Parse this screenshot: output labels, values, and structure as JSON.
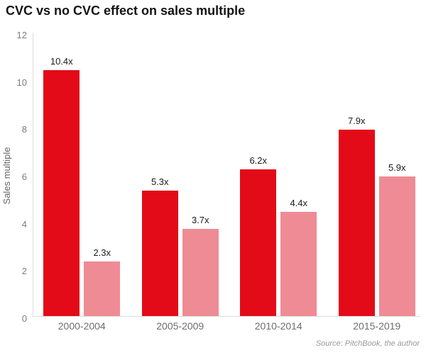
{
  "title": "CVC vs no CVC effect on sales multiple",
  "source_note": "Source: PitchBook, the author",
  "colors": {
    "cvc_red": "#e30b17",
    "no_cvc_pink": "#ef8b94",
    "axis_line": "#dcdcdc",
    "tick_text": "#7d7d7d",
    "value_text": "#1a1a1a",
    "category_text": "#6e6e6e",
    "title_text": "#141414",
    "source_text": "#9a9a9a"
  },
  "chart_data": {
    "type": "bar",
    "title": "CVC vs no CVC effect on sales multiple",
    "xlabel": "",
    "ylabel": "Sales multiple",
    "ylim": [
      0,
      12
    ],
    "yticks": [
      0,
      2,
      4,
      6,
      8,
      10,
      12
    ],
    "grid": false,
    "legend_position": "none",
    "categories": [
      "2000-2004",
      "2005-2009",
      "2010-2014",
      "2015-2019"
    ],
    "series": [
      {
        "name": "CVC",
        "color": "#e30b17",
        "values": [
          10.4,
          5.3,
          6.2,
          7.9
        ],
        "value_labels": [
          "10.4x",
          "5.3x",
          "6.2x",
          "7.9x"
        ]
      },
      {
        "name": "no CVC",
        "color": "#ef8b94",
        "values": [
          2.3,
          3.7,
          4.4,
          5.9
        ],
        "value_labels": [
          "2.3x",
          "3.7x",
          "4.4x",
          "5.9x"
        ]
      }
    ]
  }
}
